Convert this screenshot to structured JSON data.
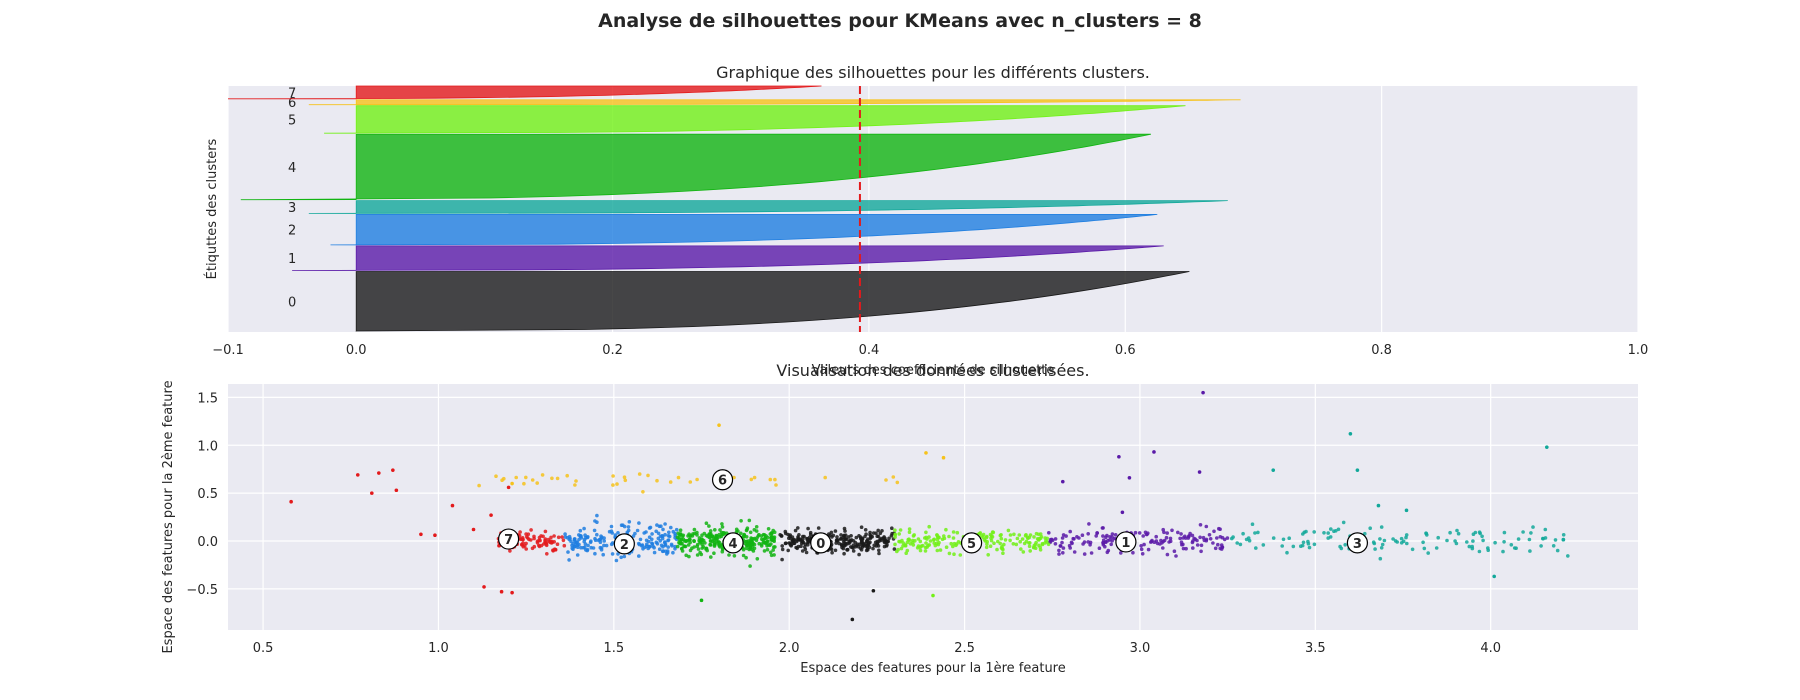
{
  "suptitle": "Analyse de silhouettes pour KMeans avec n_clusters = 8",
  "chart_data": [
    {
      "type": "area",
      "title": "Graphique des silhouettes pour les différents clusters.",
      "xlabel": "Valeurs des coefficients de silhouette",
      "ylabel": "Étiquttes des clusters",
      "xlim": [
        -0.1,
        1.0
      ],
      "ylim": [
        0,
        2500
      ],
      "xticks": [
        -0.1,
        0.0,
        0.2,
        0.4,
        0.6,
        0.8,
        1.0
      ],
      "xtick_labels": [
        "−0.1",
        "0.0",
        "0.2",
        "0.4",
        "0.6",
        "0.8",
        "1.0"
      ],
      "grid": true,
      "average_silhouette": 0.393,
      "clusters": [
        {
          "label": "0",
          "y_lower": 10,
          "y_upper": 615,
          "s_max": 0.65,
          "s_min": 0.0,
          "color": "#1a1a1a"
        },
        {
          "label": "1",
          "y_lower": 625,
          "y_upper": 875,
          "s_max": 0.63,
          "s_min": -0.05,
          "color": "#5a1aa8"
        },
        {
          "label": "2",
          "y_lower": 885,
          "y_upper": 1195,
          "s_max": 0.625,
          "s_min": -0.02,
          "color": "#1f7ee0"
        },
        {
          "label": "3",
          "y_lower": 1205,
          "y_upper": 1335,
          "s_max": 0.68,
          "s_min": -0.037,
          "color": "#12a89a"
        },
        {
          "label": "4",
          "y_lower": 1345,
          "y_upper": 2010,
          "s_max": 0.62,
          "s_min": -0.09,
          "color": "#12b412"
        },
        {
          "label": "5",
          "y_lower": 2020,
          "y_upper": 2300,
          "s_max": 0.647,
          "s_min": -0.025,
          "color": "#72f017"
        },
        {
          "label": "6",
          "y_lower": 2310,
          "y_upper": 2360,
          "s_max": 0.69,
          "s_min": -0.037,
          "color": "#f6c21b"
        },
        {
          "label": "7",
          "y_lower": 2370,
          "y_upper": 2500,
          "s_max": 0.363,
          "s_min": -0.1,
          "color": "#e31a1c"
        }
      ]
    },
    {
      "type": "scatter",
      "title": "Visualisation des données clusterisées.",
      "xlabel": "Espace des features pour la 1ère feature",
      "ylabel": "Espace des features pour la 2ème feature",
      "xlim": [
        0.4,
        4.42
      ],
      "ylim": [
        -0.93,
        1.64
      ],
      "xticks": [
        0.5,
        1.0,
        1.5,
        2.0,
        2.5,
        3.0,
        3.5,
        4.0
      ],
      "xtick_labels": [
        "0.5",
        "1.0",
        "1.5",
        "2.0",
        "2.5",
        "3.0",
        "3.5",
        "4.0"
      ],
      "yticks": [
        -0.5,
        0.0,
        0.5,
        1.0,
        1.5
      ],
      "ytick_labels": [
        "−0.5",
        "0.0",
        "0.5",
        "1.0",
        "1.5"
      ],
      "grid": true,
      "clusters": [
        {
          "label": "0",
          "color": "#1a1a1a",
          "x_range": [
            1.97,
            2.3
          ],
          "center": [
            2.09,
            -0.02
          ],
          "n": 260,
          "spread": 0.06
        },
        {
          "label": "1",
          "color": "#5a1aa8",
          "x_range": [
            2.74,
            3.25
          ],
          "center": [
            2.96,
            -0.01
          ],
          "n": 170,
          "spread": 0.07
        },
        {
          "label": "2",
          "color": "#1f7ee0",
          "x_range": [
            1.36,
            1.68
          ],
          "center": [
            1.53,
            -0.03
          ],
          "n": 200,
          "spread": 0.09
        },
        {
          "label": "3",
          "color": "#12a89a",
          "x_range": [
            3.26,
            4.24
          ],
          "center": [
            3.62,
            -0.02
          ],
          "n": 120,
          "spread": 0.07
        },
        {
          "label": "4",
          "color": "#12b412",
          "x_range": [
            1.68,
            1.96
          ],
          "center": [
            1.84,
            -0.02
          ],
          "n": 280,
          "spread": 0.08
        },
        {
          "label": "5",
          "color": "#72f017",
          "x_range": [
            2.3,
            2.74
          ],
          "center": [
            2.52,
            -0.02
          ],
          "n": 200,
          "spread": 0.06
        },
        {
          "label": "6",
          "color": "#f6c21b",
          "x_range": [
            1.1,
            2.4
          ],
          "center": [
            1.81,
            0.64
          ],
          "n": 40,
          "spread": 0.04,
          "y_offset": 0.63
        },
        {
          "label": "7",
          "color": "#e31a1c",
          "x_range": [
            1.17,
            1.36
          ],
          "center": [
            1.2,
            0.02
          ],
          "n": 90,
          "spread": 0.05
        }
      ],
      "outliers": [
        {
          "x": 0.58,
          "y": 0.41,
          "color": "#e31a1c"
        },
        {
          "x": 0.77,
          "y": 0.69,
          "color": "#e31a1c"
        },
        {
          "x": 0.81,
          "y": 0.5,
          "color": "#e31a1c"
        },
        {
          "x": 0.83,
          "y": 0.71,
          "color": "#e31a1c"
        },
        {
          "x": 0.87,
          "y": 0.74,
          "color": "#e31a1c"
        },
        {
          "x": 0.88,
          "y": 0.53,
          "color": "#e31a1c"
        },
        {
          "x": 0.95,
          "y": 0.07,
          "color": "#e31a1c"
        },
        {
          "x": 0.99,
          "y": 0.06,
          "color": "#e31a1c"
        },
        {
          "x": 1.04,
          "y": 0.37,
          "color": "#e31a1c"
        },
        {
          "x": 1.1,
          "y": 0.12,
          "color": "#e31a1c"
        },
        {
          "x": 1.15,
          "y": 0.27,
          "color": "#e31a1c"
        },
        {
          "x": 1.2,
          "y": 0.56,
          "color": "#e31a1c"
        },
        {
          "x": 1.13,
          "y": -0.48,
          "color": "#e31a1c"
        },
        {
          "x": 1.18,
          "y": -0.53,
          "color": "#e31a1c"
        },
        {
          "x": 1.21,
          "y": -0.54,
          "color": "#e31a1c"
        },
        {
          "x": 3.18,
          "y": 1.55,
          "color": "#5a1aa8"
        },
        {
          "x": 2.94,
          "y": 0.88,
          "color": "#5a1aa8"
        },
        {
          "x": 3.04,
          "y": 0.93,
          "color": "#5a1aa8"
        },
        {
          "x": 3.17,
          "y": 0.72,
          "color": "#5a1aa8"
        },
        {
          "x": 2.97,
          "y": 0.66,
          "color": "#5a1aa8"
        },
        {
          "x": 2.95,
          "y": 0.3,
          "color": "#5a1aa8"
        },
        {
          "x": 2.78,
          "y": 0.62,
          "color": "#5a1aa8"
        },
        {
          "x": 3.6,
          "y": 1.12,
          "color": "#12a89a"
        },
        {
          "x": 4.16,
          "y": 0.98,
          "color": "#12a89a"
        },
        {
          "x": 3.38,
          "y": 0.74,
          "color": "#12a89a"
        },
        {
          "x": 3.62,
          "y": 0.74,
          "color": "#12a89a"
        },
        {
          "x": 3.68,
          "y": 0.37,
          "color": "#12a89a"
        },
        {
          "x": 3.76,
          "y": 0.32,
          "color": "#12a89a"
        },
        {
          "x": 4.01,
          "y": -0.37,
          "color": "#12a89a"
        },
        {
          "x": 2.44,
          "y": 0.87,
          "color": "#f6c21b"
        },
        {
          "x": 2.39,
          "y": 0.92,
          "color": "#f6c21b"
        },
        {
          "x": 1.8,
          "y": 1.21,
          "color": "#f6c21b"
        },
        {
          "x": 1.21,
          "y": 0.6,
          "color": "#f6c21b"
        },
        {
          "x": 2.18,
          "y": -0.82,
          "color": "#1a1a1a"
        },
        {
          "x": 2.24,
          "y": -0.52,
          "color": "#1a1a1a"
        },
        {
          "x": 1.75,
          "y": -0.62,
          "color": "#12b412"
        },
        {
          "x": 2.41,
          "y": -0.57,
          "color": "#72f017"
        }
      ]
    }
  ]
}
